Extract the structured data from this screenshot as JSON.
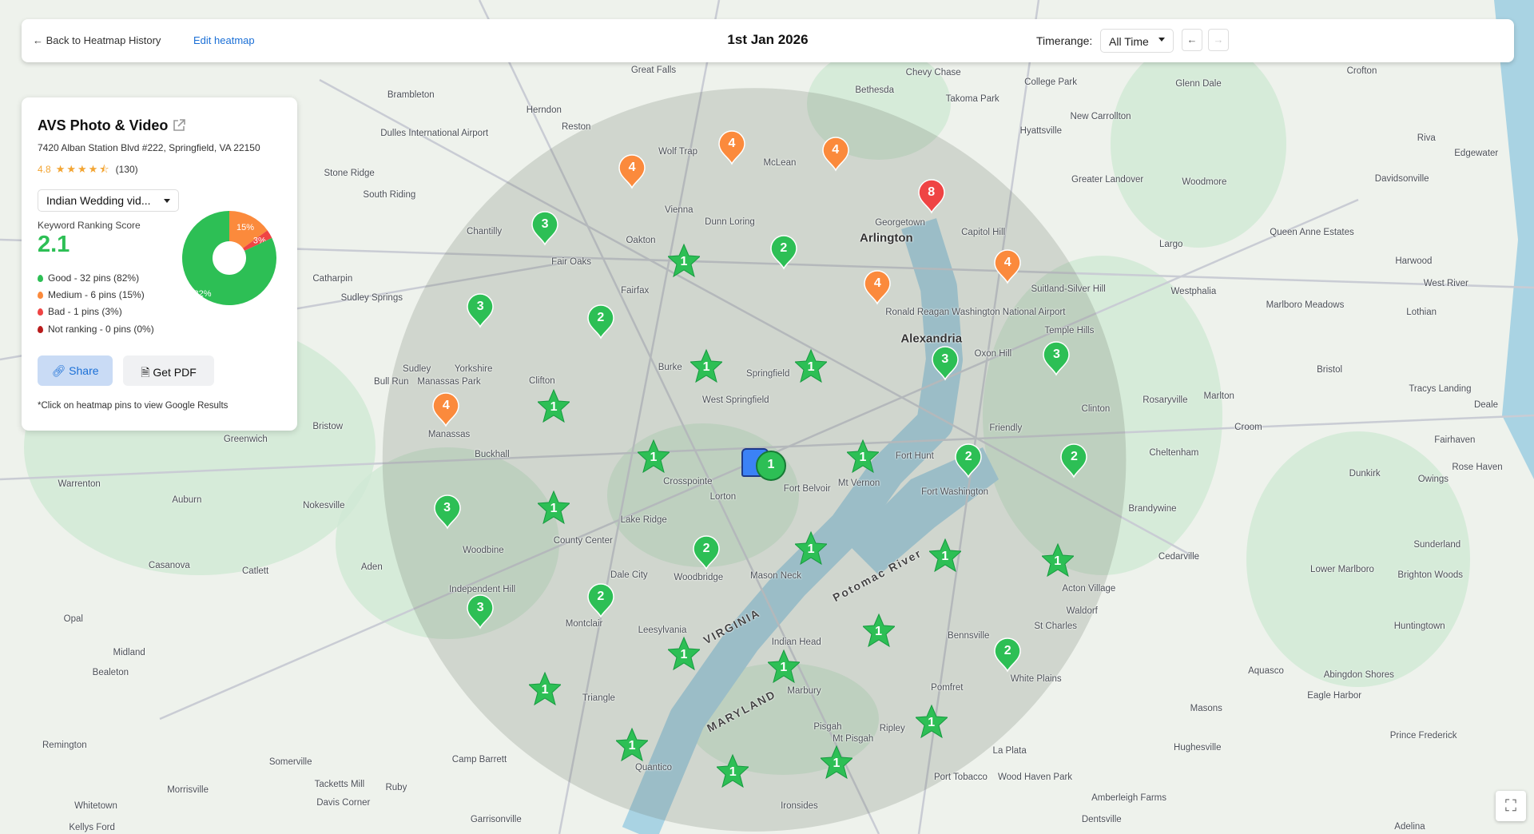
{
  "topbar": {
    "back_label": "Back to Heatmap History",
    "edit_label": "Edit heatmap",
    "date": "1st Jan 2026",
    "timerange_label": "Timerange:",
    "timerange_value": "All Time",
    "prev_icon": "arrow-left",
    "next_icon": "arrow-right"
  },
  "business": {
    "name": "AVS Photo & Video",
    "external_icon": "external-link",
    "address": "7420 Alban Station Blvd #222, Springfield, VA 22150",
    "rating": "4.8",
    "stars": 4.5,
    "reviews": "(130)"
  },
  "keyword": {
    "selected": "Indian Wedding vid..."
  },
  "score": {
    "label": "Keyword Ranking Score",
    "value": "2.1"
  },
  "legend": [
    {
      "text": "Good - 32 pins (82%)",
      "color": "#2dbf55"
    },
    {
      "text": "Medium - 6 pins (15%)",
      "color": "#fb8a3c"
    },
    {
      "text": "Bad - 1 pins (3%)",
      "color": "#ef4444"
    },
    {
      "text": "Not ranking - 0 pins (0%)",
      "color": "#b91c1c"
    }
  ],
  "donut": [
    {
      "label": "82%",
      "value": 82,
      "color": "#2dbf55"
    },
    {
      "label": "15%",
      "value": 15,
      "color": "#fb8a3c"
    },
    {
      "label": "3%",
      "value": 3,
      "color": "#ef4444"
    }
  ],
  "actions": {
    "share": "Share",
    "pdf": "Get PDF"
  },
  "note": "*Click on heatmap pins to view Google Results",
  "colors": {
    "good": "#2dbf55",
    "medium": "#fb8a3c",
    "bad": "#ef4444",
    "business": "#3b82f6"
  },
  "pins": [
    {
      "rank": "4",
      "status": "medium"
    },
    {
      "rank": "4",
      "status": "medium"
    },
    {
      "rank": "4",
      "status": "medium"
    },
    {
      "rank": "4",
      "status": "medium"
    },
    {
      "rank": "4",
      "status": "medium"
    },
    {
      "rank": "4",
      "status": "medium"
    },
    {
      "rank": "8",
      "status": "bad"
    },
    {
      "rank": "3",
      "status": "good"
    },
    {
      "rank": "2",
      "status": "good"
    },
    {
      "rank": "3",
      "status": "good"
    },
    {
      "rank": "2",
      "status": "good"
    },
    {
      "rank": "3",
      "status": "good"
    },
    {
      "rank": "3",
      "status": "good"
    },
    {
      "rank": "2",
      "status": "good"
    },
    {
      "rank": "2",
      "status": "good"
    },
    {
      "rank": "3",
      "status": "good"
    },
    {
      "rank": "2",
      "status": "good"
    },
    {
      "rank": "2",
      "status": "good"
    },
    {
      "rank": "3",
      "status": "good"
    },
    {
      "rank": "2",
      "status": "good"
    },
    {
      "rank": "1",
      "status": "good"
    },
    {
      "rank": "1",
      "status": "good"
    },
    {
      "rank": "1",
      "status": "good"
    },
    {
      "rank": "1",
      "status": "good"
    },
    {
      "rank": "1",
      "status": "good"
    },
    {
      "rank": "1",
      "status": "good"
    },
    {
      "rank": "1",
      "status": "good"
    },
    {
      "rank": "1",
      "status": "good"
    },
    {
      "rank": "1",
      "status": "good"
    },
    {
      "rank": "1",
      "status": "good"
    },
    {
      "rank": "1",
      "status": "good"
    },
    {
      "rank": "1",
      "status": "good"
    },
    {
      "rank": "1",
      "status": "good"
    },
    {
      "rank": "1",
      "status": "good"
    },
    {
      "rank": "1",
      "status": "good"
    },
    {
      "rank": "1",
      "status": "good"
    },
    {
      "rank": "1",
      "status": "good"
    },
    {
      "rank": "1",
      "status": "good"
    },
    {
      "rank": "1",
      "status": "good"
    }
  ],
  "map_labels": [
    "Arlington",
    "Alexandria",
    "Springfield",
    "Fairfax",
    "Vienna",
    "McLean",
    "Burke",
    "West Springfield",
    "Crosspointe",
    "Fort Belvoir",
    "Lorton",
    "Lake Ridge",
    "County Center",
    "Woodbridge",
    "Dale City",
    "Montclair",
    "Manassas",
    "Manassas Park",
    "Chantilly",
    "Oakton",
    "Fair Oaks",
    "Dunn Loring",
    "Mt Vernon",
    "Fort Hunt",
    "Fort Washington",
    "Oxon Hill",
    "Friendly",
    "Clinton",
    "Temple Hills",
    "Largo",
    "Bethesda",
    "Great Falls",
    "Reston",
    "Herndon",
    "Dulles International Airport",
    "Georgetown",
    "Capitol Hill",
    "Ronald Reagan Washington National Airport",
    "Waldorf",
    "Bennsville",
    "Indian Head",
    "Marbury",
    "Pomfret",
    "Ripley",
    "Mt Pisgah",
    "Pisgah",
    "La Plata",
    "Port Tobacco",
    "Quantico",
    "Triangle",
    "Leesylvania",
    "Mason Neck",
    "Woodbine",
    "Independent Hill",
    "Nokesville",
    "Catlett",
    "Aden",
    "Bristow",
    "Buckhall",
    "Clifton",
    "Yorkshire",
    "Sudley",
    "Bull Run",
    "Catharpin",
    "Sudley Springs",
    "South Riding",
    "Stone Ridge",
    "Greenwich",
    "Warrenton",
    "Auburn",
    "Casanova",
    "Opal",
    "Midland",
    "Bealeton",
    "Remington",
    "Somerville",
    "Morrisville",
    "Camp Barrett",
    "Tacketts Mill",
    "Ruby",
    "Davis Corner",
    "Whitetown",
    "Garrisonville",
    "Ironsides",
    "Brandywine",
    "Cedarville",
    "Acton Village",
    "St Charles",
    "White Plains",
    "Hughesville",
    "Rosaryville",
    "Marlton",
    "Croom",
    "Cheltenham",
    "Westphalia",
    "Suitland-Silver Hill",
    "Woodmore",
    "Davidsonville",
    "Harwood",
    "West River",
    "Lothian",
    "Marlboro Meadows",
    "Queen Anne Estates",
    "Bristol",
    "Tracys Landing",
    "Deale",
    "Fairhaven",
    "Dunkirk",
    "Owings",
    "Rose Haven",
    "Sunderland",
    "Lower Marlboro",
    "Brighton Woods",
    "Huntingtown",
    "Aquasco",
    "Eagle Harbor",
    "Abingdon Shores",
    "Prince Frederick",
    "Masons",
    "Adelina",
    "Dentsville",
    "Amberleigh Farms",
    "Wood Haven Park",
    "Riva",
    "Edgewater",
    "Crofton",
    "Glenn Dale",
    "New Carrollton",
    "Greater Landover",
    "Hyattsville",
    "College Park",
    "Takoma Park",
    "Chevy Chase",
    "Wolf Trap",
    "Brambleton",
    "Kellys Ford",
    "VIRGINIA",
    "MARYLAND",
    "Potomac River"
  ]
}
